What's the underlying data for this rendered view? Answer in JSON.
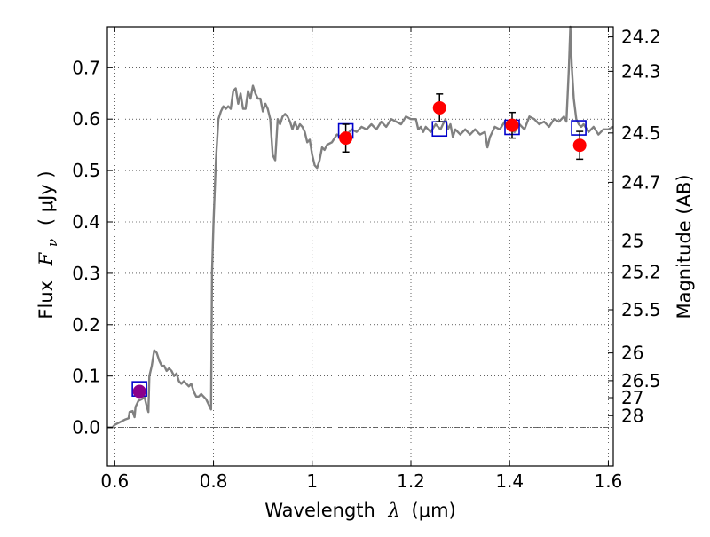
{
  "chart_data": {
    "type": "line",
    "title": "",
    "xlabel": "Wavelength",
    "xlabel_symbol": "λ",
    "xlabel_unit": "(μm)",
    "ylabel": "Flux",
    "ylabel_symbol": "F",
    "ylabel_symbol_sub": "ν",
    "ylabel_unit": "( μJy )",
    "ylabel_right": "Magnitude (AB)",
    "xlim": [
      0.585,
      1.61
    ],
    "ylim": [
      -0.075,
      0.78
    ],
    "grid": true,
    "x_ticks": [
      0.6,
      0.8,
      1.0,
      1.2,
      1.4,
      1.6
    ],
    "x_tick_labels": [
      "0.6",
      "0.8",
      "1",
      "1.2",
      "1.4",
      "1.6"
    ],
    "y_ticks": [
      0.0,
      0.1,
      0.2,
      0.3,
      0.4,
      0.5,
      0.6,
      0.7
    ],
    "y_tick_labels": [
      "0.0",
      "0.1",
      "0.2",
      "0.3",
      "0.4",
      "0.5",
      "0.6",
      "0.7"
    ],
    "right_ticks": [
      {
        "flux": 0.76,
        "label": "24.2"
      },
      {
        "flux": 0.693,
        "label": "24.3"
      },
      {
        "flux": 0.573,
        "label": "24.5"
      },
      {
        "flux": 0.477,
        "label": "24.7"
      },
      {
        "flux": 0.363,
        "label": "25"
      },
      {
        "flux": 0.302,
        "label": "25.2"
      },
      {
        "flux": 0.229,
        "label": "25.5"
      },
      {
        "flux": 0.145,
        "label": "26"
      },
      {
        "flux": 0.091,
        "label": "26.5"
      },
      {
        "flux": 0.058,
        "label": "27"
      },
      {
        "flux": 0.023,
        "label": "28"
      }
    ],
    "model_spectrum": {
      "color": "#808080",
      "points": [
        [
          0.585,
          0.0
        ],
        [
          0.595,
          0.0
        ],
        [
          0.6,
          0.005
        ],
        [
          0.61,
          0.01
        ],
        [
          0.62,
          0.015
        ],
        [
          0.628,
          0.018
        ],
        [
          0.63,
          0.03
        ],
        [
          0.636,
          0.032
        ],
        [
          0.64,
          0.02
        ],
        [
          0.642,
          0.04
        ],
        [
          0.648,
          0.052
        ],
        [
          0.655,
          0.055
        ],
        [
          0.66,
          0.06
        ],
        [
          0.665,
          0.04
        ],
        [
          0.668,
          0.03
        ],
        [
          0.67,
          0.1
        ],
        [
          0.675,
          0.12
        ],
        [
          0.68,
          0.15
        ],
        [
          0.685,
          0.145
        ],
        [
          0.69,
          0.13
        ],
        [
          0.695,
          0.12
        ],
        [
          0.7,
          0.12
        ],
        [
          0.705,
          0.11
        ],
        [
          0.71,
          0.115
        ],
        [
          0.715,
          0.11
        ],
        [
          0.72,
          0.1
        ],
        [
          0.725,
          0.105
        ],
        [
          0.73,
          0.09
        ],
        [
          0.735,
          0.085
        ],
        [
          0.74,
          0.09
        ],
        [
          0.745,
          0.085
        ],
        [
          0.75,
          0.08
        ],
        [
          0.755,
          0.085
        ],
        [
          0.76,
          0.07
        ],
        [
          0.765,
          0.06
        ],
        [
          0.77,
          0.06
        ],
        [
          0.775,
          0.065
        ],
        [
          0.78,
          0.06
        ],
        [
          0.785,
          0.055
        ],
        [
          0.79,
          0.045
        ],
        [
          0.795,
          0.035
        ],
        [
          0.797,
          0.3
        ],
        [
          0.8,
          0.4
        ],
        [
          0.805,
          0.52
        ],
        [
          0.81,
          0.6
        ],
        [
          0.815,
          0.615
        ],
        [
          0.82,
          0.625
        ],
        [
          0.825,
          0.62
        ],
        [
          0.83,
          0.625
        ],
        [
          0.835,
          0.62
        ],
        [
          0.84,
          0.655
        ],
        [
          0.845,
          0.66
        ],
        [
          0.85,
          0.63
        ],
        [
          0.855,
          0.65
        ],
        [
          0.86,
          0.62
        ],
        [
          0.865,
          0.62
        ],
        [
          0.87,
          0.655
        ],
        [
          0.875,
          0.64
        ],
        [
          0.88,
          0.665
        ],
        [
          0.885,
          0.65
        ],
        [
          0.89,
          0.64
        ],
        [
          0.895,
          0.64
        ],
        [
          0.9,
          0.615
        ],
        [
          0.905,
          0.63
        ],
        [
          0.91,
          0.62
        ],
        [
          0.915,
          0.6
        ],
        [
          0.92,
          0.53
        ],
        [
          0.925,
          0.52
        ],
        [
          0.93,
          0.6
        ],
        [
          0.935,
          0.59
        ],
        [
          0.94,
          0.605
        ],
        [
          0.945,
          0.61
        ],
        [
          0.95,
          0.605
        ],
        [
          0.955,
          0.595
        ],
        [
          0.96,
          0.58
        ],
        [
          0.965,
          0.595
        ],
        [
          0.97,
          0.58
        ],
        [
          0.975,
          0.59
        ],
        [
          0.98,
          0.585
        ],
        [
          0.985,
          0.575
        ],
        [
          0.99,
          0.555
        ],
        [
          0.995,
          0.56
        ],
        [
          1.0,
          0.53
        ],
        [
          1.005,
          0.51
        ],
        [
          1.01,
          0.505
        ],
        [
          1.015,
          0.52
        ],
        [
          1.02,
          0.545
        ],
        [
          1.025,
          0.54
        ],
        [
          1.03,
          0.55
        ],
        [
          1.04,
          0.555
        ],
        [
          1.05,
          0.57
        ],
        [
          1.06,
          0.565
        ],
        [
          1.07,
          0.57
        ],
        [
          1.08,
          0.58
        ],
        [
          1.09,
          0.575
        ],
        [
          1.1,
          0.585
        ],
        [
          1.11,
          0.58
        ],
        [
          1.12,
          0.59
        ],
        [
          1.13,
          0.58
        ],
        [
          1.14,
          0.595
        ],
        [
          1.15,
          0.585
        ],
        [
          1.16,
          0.6
        ],
        [
          1.17,
          0.595
        ],
        [
          1.18,
          0.59
        ],
        [
          1.19,
          0.605
        ],
        [
          1.2,
          0.6
        ],
        [
          1.21,
          0.6
        ],
        [
          1.215,
          0.58
        ],
        [
          1.22,
          0.585
        ],
        [
          1.225,
          0.575
        ],
        [
          1.23,
          0.585
        ],
        [
          1.24,
          0.575
        ],
        [
          1.25,
          0.59
        ],
        [
          1.26,
          0.58
        ],
        [
          1.265,
          0.59
        ],
        [
          1.27,
          0.6
        ],
        [
          1.275,
          0.58
        ],
        [
          1.28,
          0.59
        ],
        [
          1.285,
          0.565
        ],
        [
          1.29,
          0.58
        ],
        [
          1.3,
          0.57
        ],
        [
          1.31,
          0.58
        ],
        [
          1.32,
          0.57
        ],
        [
          1.33,
          0.58
        ],
        [
          1.34,
          0.57
        ],
        [
          1.35,
          0.575
        ],
        [
          1.355,
          0.545
        ],
        [
          1.36,
          0.565
        ],
        [
          1.37,
          0.585
        ],
        [
          1.38,
          0.58
        ],
        [
          1.39,
          0.595
        ],
        [
          1.4,
          0.58
        ],
        [
          1.41,
          0.575
        ],
        [
          1.42,
          0.59
        ],
        [
          1.43,
          0.58
        ],
        [
          1.44,
          0.605
        ],
        [
          1.45,
          0.6
        ],
        [
          1.46,
          0.59
        ],
        [
          1.47,
          0.595
        ],
        [
          1.48,
          0.585
        ],
        [
          1.49,
          0.6
        ],
        [
          1.5,
          0.595
        ],
        [
          1.51,
          0.605
        ],
        [
          1.515,
          0.595
        ],
        [
          1.52,
          0.7
        ],
        [
          1.523,
          0.78
        ],
        [
          1.526,
          0.7
        ],
        [
          1.53,
          0.64
        ],
        [
          1.535,
          0.6
        ],
        [
          1.54,
          0.59
        ],
        [
          1.545,
          0.585
        ],
        [
          1.55,
          0.59
        ],
        [
          1.56,
          0.575
        ],
        [
          1.57,
          0.585
        ],
        [
          1.58,
          0.57
        ],
        [
          1.59,
          0.58
        ],
        [
          1.6,
          0.58
        ],
        [
          1.61,
          0.585
        ]
      ]
    },
    "model_photometry": {
      "marker": "open-square",
      "color": "#0000cc",
      "points": [
        {
          "x": 0.65,
          "y": 0.075
        },
        {
          "x": 1.068,
          "y": 0.577
        },
        {
          "x": 1.258,
          "y": 0.581
        },
        {
          "x": 1.405,
          "y": 0.584
        },
        {
          "x": 1.54,
          "y": 0.583
        }
      ]
    },
    "observed_photometry": {
      "marker": "filled-circle",
      "points": [
        {
          "x": 0.65,
          "y": 0.07,
          "yerr": 0.006,
          "color": "#8b008b"
        },
        {
          "x": 1.068,
          "y": 0.563,
          "yerr": 0.027,
          "color": "#ff0000"
        },
        {
          "x": 1.258,
          "y": 0.622,
          "yerr": 0.027,
          "color": "#ff0000"
        },
        {
          "x": 1.405,
          "y": 0.588,
          "yerr": 0.025,
          "color": "#ff0000"
        },
        {
          "x": 1.542,
          "y": 0.549,
          "yerr": 0.027,
          "color": "#ff0000"
        }
      ]
    },
    "zero_line": {
      "y": 0.0,
      "style": "dash-dot"
    }
  }
}
